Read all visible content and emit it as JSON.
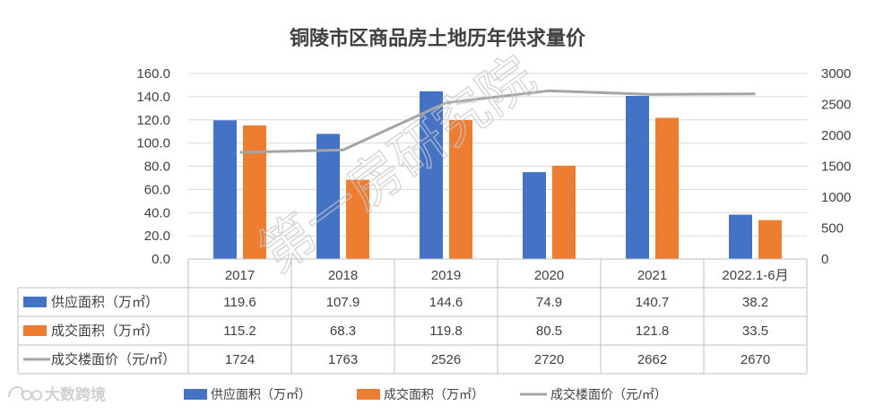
{
  "colors": {
    "supply": "#4472C4",
    "deal": "#ED7D31",
    "price": "#A5A5A5",
    "text": "#404040",
    "grid": "#D9D9D9"
  },
  "watermark": {
    "text": "第一房研究院"
  },
  "logo": {
    "icon": "weibo-style-eye-icon",
    "text": "大数跨境"
  },
  "chart_data": {
    "type": "bar",
    "title": "铜陵市区商品房土地历年供求量价",
    "categories": [
      "2017",
      "2018",
      "2019",
      "2020",
      "2021",
      "2022.1-6月"
    ],
    "y_left": {
      "ticks": [
        "0.0",
        "20.0",
        "40.0",
        "60.0",
        "80.0",
        "100.0",
        "120.0",
        "140.0",
        "160.0"
      ],
      "ylim": [
        0,
        160
      ]
    },
    "y_right": {
      "ticks": [
        "0",
        "500",
        "1000",
        "1500",
        "2000",
        "2500",
        "3000"
      ],
      "ylim": [
        0,
        3000
      ]
    },
    "grid": true,
    "legend_position": "bottom",
    "series": [
      {
        "name": "供应面积（万㎡）",
        "type": "bar",
        "axis": "left",
        "color": "#4472C4",
        "values": [
          119.6,
          107.9,
          144.6,
          74.9,
          140.7,
          38.2
        ],
        "labels": [
          "119.6",
          "107.9",
          "144.6",
          "74.9",
          "140.7",
          "38.2"
        ]
      },
      {
        "name": "成交面积（万㎡）",
        "type": "bar",
        "axis": "left",
        "color": "#ED7D31",
        "values": [
          115.2,
          68.3,
          119.8,
          80.5,
          121.8,
          33.5
        ],
        "labels": [
          "115.2",
          "68.3",
          "119.8",
          "80.5",
          "121.8",
          "33.5"
        ]
      },
      {
        "name": "成交楼面价（元/㎡）",
        "type": "line",
        "axis": "right",
        "color": "#A5A5A5",
        "values": [
          1724,
          1763,
          2526,
          2720,
          2662,
          2670
        ],
        "labels": [
          "1724",
          "1763",
          "2526",
          "2720",
          "2662",
          "2670"
        ]
      }
    ]
  }
}
